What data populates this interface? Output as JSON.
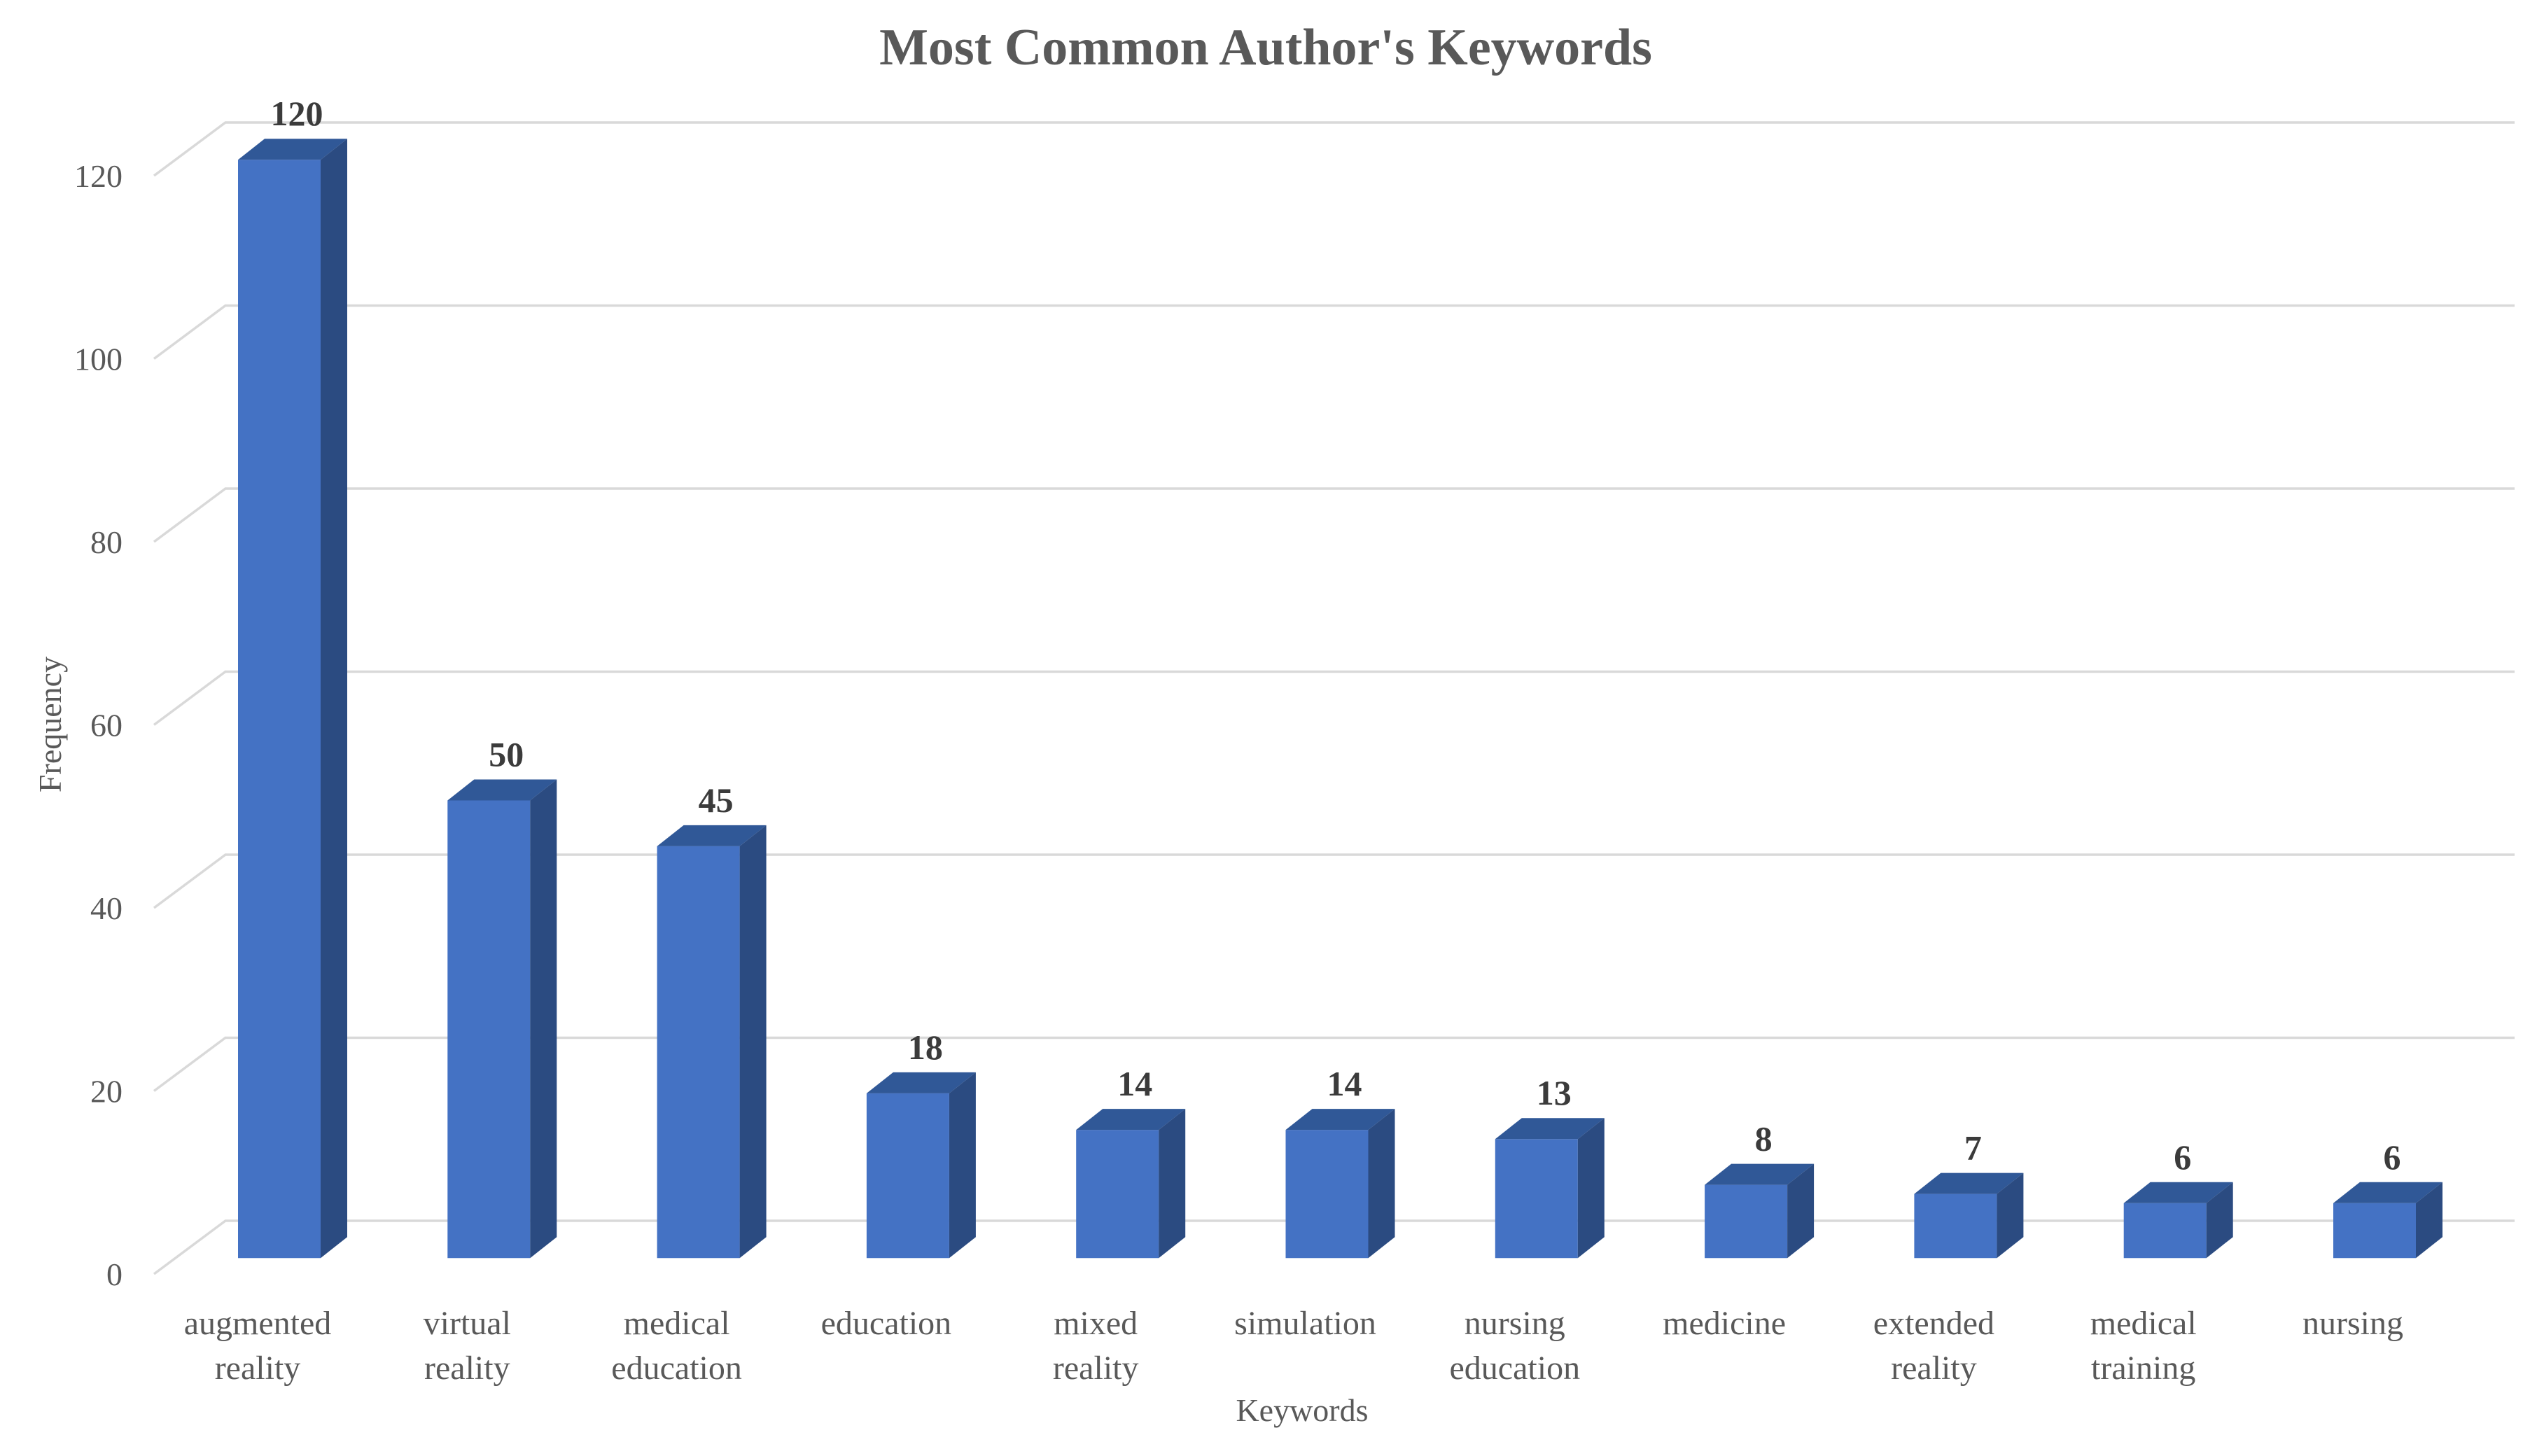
{
  "chart_data": {
    "type": "bar",
    "style": "3d-column",
    "title": "Most Common Author's Keywords",
    "xlabel": "Keywords",
    "ylabel": "Frequency",
    "categories": [
      "augmented reality",
      "virtual reality",
      "medical education",
      "education",
      "mixed reality",
      "simulation",
      "nursing education",
      "medicine",
      "extended reality",
      "medical training",
      "nursing"
    ],
    "values": [
      120,
      50,
      45,
      18,
      14,
      14,
      13,
      8,
      7,
      6,
      6
    ],
    "data_labels": [
      "120",
      "50",
      "45",
      "18",
      "14",
      "14",
      "13",
      "8",
      "7",
      "6",
      "6"
    ],
    "yticks": [
      0,
      20,
      40,
      60,
      80,
      100,
      120
    ],
    "ylim": [
      0,
      120
    ],
    "grid": true,
    "legend": "none",
    "colors": {
      "bar_front": "#4472C4",
      "bar_top": "#305897",
      "bar_side": "#2B4B81",
      "gridline": "#D9D9D9",
      "tick_text": "#595959",
      "category_text": "#595959",
      "data_label_text": "#3B3B3B",
      "axis_title_text": "#595959",
      "title_text": "#595959",
      "background": "#FFFFFF"
    }
  }
}
